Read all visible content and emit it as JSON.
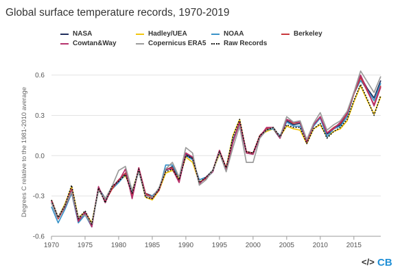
{
  "title": "Global surface temperature records, 1970-2019",
  "logos": {
    "code_icon_text": "</>",
    "brand_text": "CB",
    "code_color": "#333333",
    "brand_color": "#1f8fd6"
  },
  "chart_data": {
    "type": "line",
    "title": "Global surface temperature records, 1970-2019",
    "xlabel": "",
    "ylabel": "Degrees C relative to the 1981-2010 average",
    "xlim": [
      1970,
      2019
    ],
    "ylim": [
      -0.6,
      0.7
    ],
    "xticks": [
      1970,
      1975,
      1980,
      1985,
      1990,
      1995,
      2000,
      2005,
      2010,
      2015
    ],
    "yticks": [
      -0.6,
      -0.3,
      0.0,
      0.3,
      0.6
    ],
    "ytick_labels": [
      "-0.6",
      "-0.3",
      "0.0",
      "0.3",
      "0.6"
    ],
    "grid": "horizontal",
    "legend_position": "top",
    "x": [
      1970,
      1971,
      1972,
      1973,
      1974,
      1975,
      1976,
      1977,
      1978,
      1979,
      1980,
      1981,
      1982,
      1983,
      1984,
      1985,
      1986,
      1987,
      1988,
      1989,
      1990,
      1991,
      1992,
      1993,
      1994,
      1995,
      1996,
      1997,
      1998,
      1999,
      2000,
      2001,
      2002,
      2003,
      2004,
      2005,
      2006,
      2007,
      2008,
      2009,
      2010,
      2011,
      2012,
      2013,
      2014,
      2015,
      2016,
      2017,
      2018,
      2019
    ],
    "series": [
      {
        "name": "NASA",
        "color": "#1f2d5c",
        "dash": "",
        "values": [
          -0.35,
          -0.47,
          -0.38,
          -0.27,
          -0.48,
          -0.43,
          -0.52,
          -0.24,
          -0.32,
          -0.24,
          -0.18,
          -0.13,
          -0.29,
          -0.11,
          -0.28,
          -0.3,
          -0.25,
          -0.11,
          -0.08,
          -0.17,
          0.01,
          -0.02,
          -0.2,
          -0.17,
          -0.12,
          0.03,
          -0.09,
          0.11,
          0.24,
          0.03,
          0.02,
          0.14,
          0.19,
          0.2,
          0.13,
          0.26,
          0.23,
          0.24,
          0.12,
          0.22,
          0.29,
          0.16,
          0.2,
          0.23,
          0.31,
          0.47,
          0.59,
          0.5,
          0.43,
          0.56
        ]
      },
      {
        "name": "Hadley/UEA",
        "color": "#f2c60d",
        "dash": "",
        "values": [
          -0.33,
          -0.46,
          -0.36,
          -0.23,
          -0.46,
          -0.42,
          -0.5,
          -0.25,
          -0.33,
          -0.24,
          -0.19,
          -0.15,
          -0.26,
          -0.11,
          -0.31,
          -0.33,
          -0.26,
          -0.13,
          -0.11,
          -0.17,
          -0.01,
          -0.05,
          -0.2,
          -0.16,
          -0.11,
          0.01,
          -0.09,
          0.15,
          0.27,
          0.02,
          0.01,
          0.15,
          0.18,
          0.2,
          0.14,
          0.22,
          0.2,
          0.19,
          0.09,
          0.2,
          0.23,
          0.14,
          0.18,
          0.2,
          0.26,
          0.4,
          0.52,
          0.41,
          0.31,
          0.44
        ]
      },
      {
        "name": "NOAA",
        "color": "#3a93c8",
        "dash": "",
        "values": [
          -0.38,
          -0.5,
          -0.4,
          -0.28,
          -0.5,
          -0.44,
          -0.53,
          -0.24,
          -0.33,
          -0.25,
          -0.2,
          -0.14,
          -0.27,
          -0.12,
          -0.29,
          -0.3,
          -0.26,
          -0.07,
          -0.07,
          -0.16,
          0.0,
          -0.03,
          -0.18,
          -0.16,
          -0.11,
          0.03,
          -0.1,
          0.12,
          0.24,
          0.02,
          0.01,
          0.14,
          0.19,
          0.2,
          0.15,
          0.25,
          0.22,
          0.22,
          0.11,
          0.22,
          0.28,
          0.14,
          0.2,
          0.22,
          0.29,
          0.46,
          0.56,
          0.49,
          0.41,
          0.54
        ]
      },
      {
        "name": "Berkeley",
        "color": "#c8373b",
        "dash": "",
        "values": [
          -0.33,
          -0.47,
          -0.38,
          -0.27,
          -0.48,
          -0.42,
          -0.52,
          -0.24,
          -0.34,
          -0.25,
          -0.18,
          -0.13,
          -0.3,
          -0.09,
          -0.28,
          -0.31,
          -0.26,
          -0.1,
          -0.09,
          -0.19,
          0.02,
          -0.01,
          -0.2,
          -0.17,
          -0.11,
          0.04,
          -0.09,
          0.1,
          0.25,
          0.03,
          0.02,
          0.15,
          0.2,
          0.21,
          0.14,
          0.27,
          0.24,
          0.25,
          0.11,
          0.23,
          0.29,
          0.17,
          0.21,
          0.24,
          0.31,
          0.46,
          0.58,
          0.48,
          0.38,
          0.52
        ]
      },
      {
        "name": "Cowtan&Way",
        "color": "#b5306b",
        "dash": "",
        "values": [
          -0.34,
          -0.46,
          -0.37,
          -0.25,
          -0.49,
          -0.42,
          -0.53,
          -0.23,
          -0.35,
          -0.23,
          -0.19,
          -0.1,
          -0.32,
          -0.09,
          -0.29,
          -0.32,
          -0.25,
          -0.1,
          -0.1,
          -0.2,
          0.02,
          -0.01,
          -0.21,
          -0.16,
          -0.12,
          0.04,
          -0.11,
          0.1,
          0.25,
          0.02,
          0.01,
          0.14,
          0.21,
          0.21,
          0.13,
          0.27,
          0.25,
          0.25,
          0.1,
          0.23,
          0.29,
          0.17,
          0.2,
          0.25,
          0.32,
          0.47,
          0.6,
          0.49,
          0.37,
          0.51
        ]
      },
      {
        "name": "Copernicus ERA5",
        "color": "#9b9b9b",
        "dash": "",
        "values": [
          -0.35,
          -0.46,
          -0.37,
          -0.27,
          -0.46,
          -0.44,
          -0.51,
          -0.26,
          -0.32,
          -0.23,
          -0.11,
          -0.08,
          -0.26,
          -0.12,
          -0.3,
          -0.31,
          -0.24,
          -0.1,
          -0.05,
          -0.16,
          0.06,
          0.02,
          -0.22,
          -0.18,
          -0.11,
          0.02,
          -0.12,
          0.06,
          0.22,
          -0.05,
          -0.05,
          0.13,
          0.19,
          0.21,
          0.14,
          0.29,
          0.25,
          0.26,
          0.12,
          0.24,
          0.32,
          0.19,
          0.23,
          0.26,
          0.33,
          0.47,
          0.63,
          0.55,
          0.47,
          0.59
        ]
      },
      {
        "name": "Raw Records",
        "color": "#111111",
        "dash": "2,2",
        "values": [
          -0.33,
          -0.46,
          -0.37,
          -0.22,
          -0.47,
          -0.41,
          -0.51,
          -0.24,
          -0.35,
          -0.23,
          -0.19,
          -0.14,
          -0.28,
          -0.1,
          -0.31,
          -0.32,
          -0.25,
          -0.12,
          -0.1,
          -0.18,
          0.0,
          -0.02,
          -0.2,
          -0.16,
          -0.11,
          0.03,
          -0.09,
          0.14,
          0.27,
          0.03,
          0.02,
          0.15,
          0.19,
          0.21,
          0.14,
          0.23,
          0.21,
          0.21,
          0.09,
          0.2,
          0.24,
          0.13,
          0.18,
          0.21,
          0.27,
          0.41,
          0.53,
          0.42,
          0.3,
          0.45
        ]
      }
    ]
  }
}
